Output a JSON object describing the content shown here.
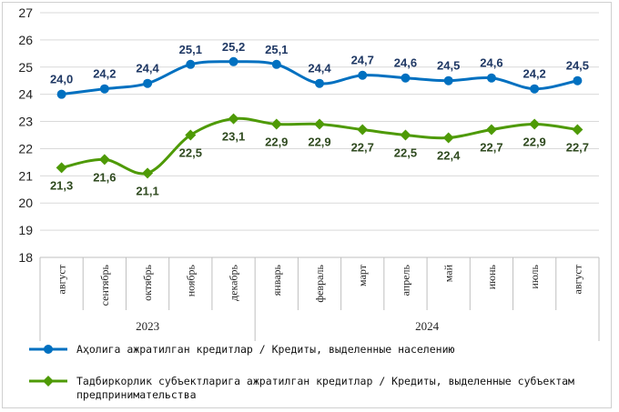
{
  "chart_data": {
    "type": "line",
    "categories": [
      "август",
      "сентябрь",
      "октябрь",
      "ноябрь",
      "декабрь",
      "январь",
      "февраль",
      "март",
      "апрель",
      "май",
      "июнь",
      "июль",
      "август"
    ],
    "year_groups": [
      {
        "label": "2023",
        "from": 0,
        "to": 4
      },
      {
        "label": "2024",
        "from": 5,
        "to": 12
      }
    ],
    "ylim": [
      18,
      27
    ],
    "yticks": [
      "18",
      "19",
      "20",
      "21",
      "22",
      "23",
      "24",
      "25",
      "26",
      "27"
    ],
    "series": [
      {
        "name": "Аҳолига ажратилган кредитлар / Кредиты, выделенные населению",
        "color": "#0070c0",
        "marker": "circle",
        "values": [
          24.0,
          24.2,
          24.4,
          25.1,
          25.2,
          25.1,
          24.4,
          24.7,
          24.6,
          24.5,
          24.6,
          24.2,
          24.5
        ],
        "labels": [
          "24,0",
          "24,2",
          "24,4",
          "25,1",
          "25,2",
          "25,1",
          "24,4",
          "24,7",
          "24,6",
          "24,5",
          "24,6",
          "24,2",
          "24,5"
        ]
      },
      {
        "name": "Тадбиркорлик субъектларига ажратилган кредитлар / Кредиты, выделенные субъектам предпринимательства",
        "color": "#4e9a06",
        "marker": "diamond",
        "values": [
          21.3,
          21.6,
          21.1,
          22.5,
          23.1,
          22.9,
          22.9,
          22.7,
          22.5,
          22.4,
          22.7,
          22.9,
          22.7
        ],
        "labels": [
          "21,3",
          "21,6",
          "21,1",
          "22,5",
          "23,1",
          "22,9",
          "22,9",
          "22,7",
          "22,5",
          "22,4",
          "22,7",
          "22,9",
          "22,7"
        ]
      }
    ],
    "grid": true,
    "legend_position": "bottom"
  }
}
